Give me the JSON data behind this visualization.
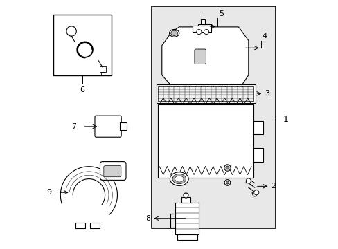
{
  "bg_color": "#ffffff",
  "line_color": "#000000",
  "gray_bg": "#e8e8e8",
  "fig_width": 4.89,
  "fig_height": 3.6,
  "dpi": 100
}
